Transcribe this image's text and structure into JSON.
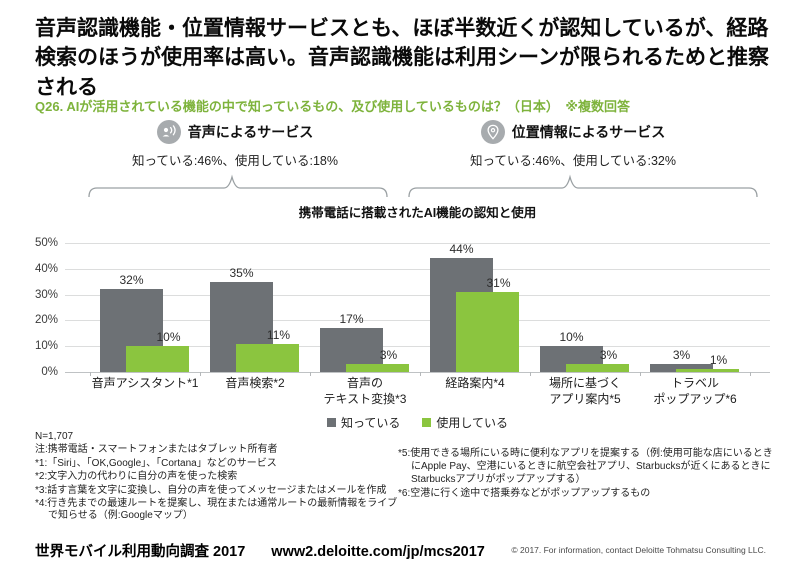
{
  "header": {
    "title": "音声認識機能・位置情報サービスとも、ほぼ半数近くが認知しているが、経路検索のほうが使用率は高い。音声認識機能は利用シーンが限られるためと推察される",
    "question": "Q26. AIが活用されている機能の中で知っているもの、及び使用しているものは？（日本）　※複数回答"
  },
  "sections": {
    "voice": {
      "icon": "voice-service-icon",
      "title": "音声によるサービス",
      "stats": "知っている:46%、使用している:18%"
    },
    "location": {
      "icon": "location-pin-icon",
      "title": "位置情報によるサービス",
      "stats": "知っている:46%、使用している:32%"
    }
  },
  "chart_data": {
    "type": "bar",
    "title": "携帯電話に搭載されたAI機能の認知と使用",
    "ylim": [
      0,
      50
    ],
    "ytick_step": 10,
    "yticks": [
      "50%",
      "40%",
      "30%",
      "20%",
      "10%",
      "0%"
    ],
    "grid": true,
    "legend_position": "bottom",
    "categories": [
      {
        "lines": [
          "音声アシスタント*1"
        ],
        "know": 32,
        "use": 10
      },
      {
        "lines": [
          "音声検索*2"
        ],
        "know": 35,
        "use": 11
      },
      {
        "lines": [
          "音声の",
          "テキスト変換*3"
        ],
        "know": 17,
        "use": 3
      },
      {
        "lines": [
          "経路案内*4"
        ],
        "know": 44,
        "use": 31
      },
      {
        "lines": [
          "場所に基づく",
          "アプリ案内*5"
        ],
        "know": 10,
        "use": 3
      },
      {
        "lines": [
          "トラベル",
          "ポップアップ*6"
        ],
        "know": 3,
        "use": 1
      }
    ],
    "series": [
      {
        "name": "知っている",
        "color": "#6d7175",
        "values": [
          32,
          35,
          17,
          44,
          10,
          3
        ]
      },
      {
        "name": "使用している",
        "color": "#8bc53f",
        "values": [
          10,
          11,
          3,
          31,
          3,
          1
        ]
      }
    ]
  },
  "footnotes": {
    "left": [
      "N=1,707",
      "注:携帯電話・スマートフォンまたはタブレット所有者",
      "*1:「Siri」、「OK,Google」、「Cortana」などのサービス",
      "*2:文字入力の代わりに自分の声を使った検索",
      "*3:話す言葉を文字に変換し、自分の声を使ってメッセージまたはメールを作成",
      "*4:行き先までの最速ルートを提案し、現在または通常ルートの最新情報をライブで知らせる（例:Googleマップ）"
    ],
    "right": [
      "*5:使用できる場所にいる時に便利なアプリを提案する（例:使用可能な店にいるときにApple Pay、空港にいるときに航空会社アプリ、Starbucksが近くにあるときにStarbucksアプリがポップアップする）",
      "*6:空港に行く途中で搭乗券などがポップアップするもの"
    ]
  },
  "footer": {
    "survey": "世界モバイル利用動向調査 2017",
    "url": "www2.deloitte.com/jp/mcs2017",
    "copyright": "© 2017. For information, contact Deloitte Tohmatsu Consulting LLC."
  },
  "colors": {
    "know_gray": "#6d7175",
    "use_green": "#8bc53f",
    "accent_green": "#7eb33c",
    "icon_gray": "#a7abae",
    "bracket_gray": "#9aa0a3"
  }
}
